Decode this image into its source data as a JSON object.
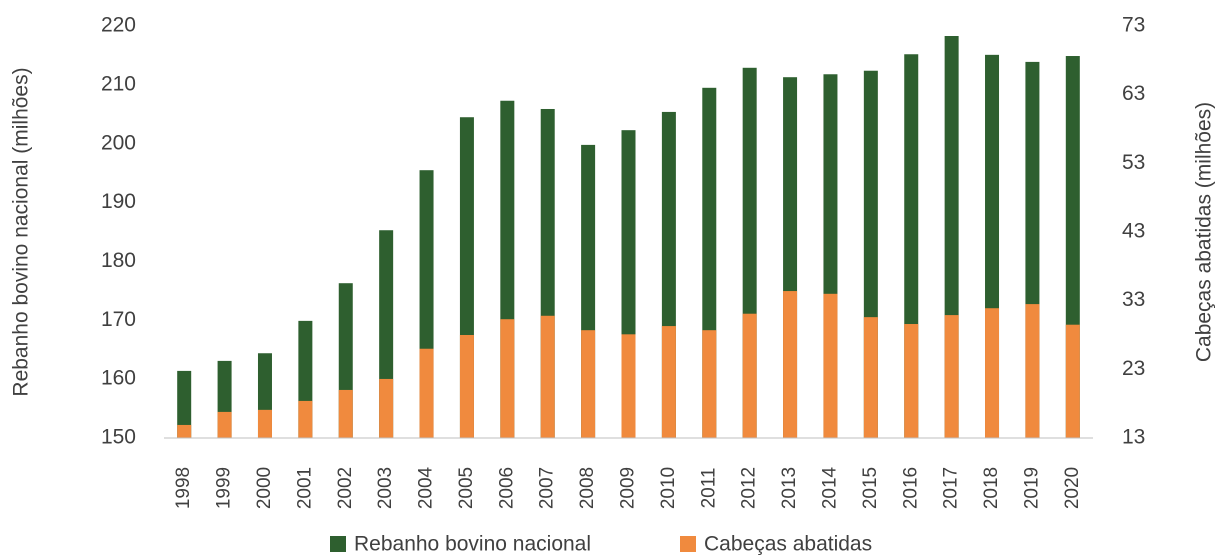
{
  "chart_data": {
    "type": "bar",
    "categories": [
      "1998",
      "1999",
      "2000",
      "2001",
      "2002",
      "2003",
      "2004",
      "2005",
      "2006",
      "2007",
      "2008",
      "2009",
      "2010",
      "2011",
      "2012",
      "2013",
      "2014",
      "2015",
      "2016",
      "2017",
      "2018",
      "2019",
      "2020"
    ],
    "series": [
      {
        "name": "Rebanho bovino nacional",
        "color": "#2e5f2f",
        "axis": "y",
        "values": [
          161.4,
          163.1,
          164.4,
          169.9,
          176.3,
          185.3,
          195.5,
          204.5,
          207.3,
          205.9,
          199.8,
          202.3,
          205.4,
          209.5,
          212.9,
          211.3,
          211.8,
          212.4,
          215.2,
          218.3,
          215.1,
          213.9,
          214.9
        ]
      },
      {
        "name": "Cabeças abatidas",
        "color": "#f08a3e",
        "axis": "y2",
        "values": [
          14.9,
          16.8,
          17.1,
          18.4,
          20.0,
          21.6,
          26.0,
          28.0,
          30.3,
          30.8,
          28.7,
          28.1,
          29.3,
          28.7,
          31.1,
          34.4,
          34.0,
          30.6,
          29.6,
          30.9,
          31.9,
          32.5,
          29.5
        ]
      }
    ],
    "ylabel": "Rebanho bovino nacional (milhões)",
    "y2label": "Cabeças abatidas (milhões)",
    "ylim": [
      150,
      220
    ],
    "yticks": [
      150,
      160,
      170,
      180,
      190,
      200,
      210,
      220
    ],
    "y2lim": [
      13,
      73
    ],
    "y2ticks": [
      13,
      23,
      33,
      43,
      53,
      63,
      73
    ],
    "legend": "bottom",
    "grid": false
  }
}
